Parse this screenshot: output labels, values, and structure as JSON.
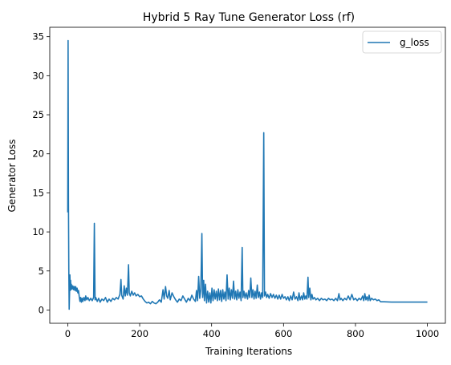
{
  "chart_data": {
    "type": "line",
    "title": "Hybrid 5 Ray Tune Generator Loss (rf)",
    "xlabel": "Training Iterations",
    "ylabel": "Generator Loss",
    "xlim": [
      -50,
      1050
    ],
    "ylim": [
      -1.7,
      36.2
    ],
    "xticks": [
      0,
      200,
      400,
      600,
      800,
      1000
    ],
    "yticks": [
      0,
      5,
      10,
      15,
      20,
      25,
      30,
      35
    ],
    "grid": false,
    "legend_position": "top-right",
    "series": [
      {
        "name": "g_loss",
        "color": "#1f77b4",
        "points": [
          [
            0,
            12.5
          ],
          [
            1,
            34.5
          ],
          [
            2,
            14.0
          ],
          [
            3,
            5.2
          ],
          [
            4,
            0.1
          ],
          [
            5,
            2.0
          ],
          [
            6,
            4.5
          ],
          [
            7,
            2.5
          ],
          [
            8,
            3.8
          ],
          [
            9,
            2.6
          ],
          [
            10,
            3.3
          ],
          [
            12,
            2.7
          ],
          [
            14,
            3.1
          ],
          [
            16,
            2.6
          ],
          [
            18,
            3.0
          ],
          [
            20,
            2.5
          ],
          [
            22,
            3.0
          ],
          [
            24,
            2.4
          ],
          [
            26,
            2.8
          ],
          [
            28,
            2.2
          ],
          [
            30,
            2.5
          ],
          [
            32,
            1.7
          ],
          [
            34,
            1.1
          ],
          [
            36,
            1.6
          ],
          [
            38,
            1.0
          ],
          [
            40,
            1.5
          ],
          [
            42,
            1.1
          ],
          [
            45,
            1.6
          ],
          [
            48,
            1.2
          ],
          [
            50,
            1.8
          ],
          [
            53,
            1.3
          ],
          [
            56,
            1.6
          ],
          [
            60,
            1.2
          ],
          [
            64,
            1.5
          ],
          [
            68,
            1.2
          ],
          [
            72,
            1.6
          ],
          [
            74,
            11.1
          ],
          [
            76,
            1.3
          ],
          [
            78,
            1.6
          ],
          [
            82,
            1.1
          ],
          [
            86,
            1.5
          ],
          [
            90,
            1.0
          ],
          [
            95,
            1.4
          ],
          [
            100,
            1.2
          ],
          [
            105,
            1.6
          ],
          [
            110,
            1.0
          ],
          [
            115,
            1.4
          ],
          [
            120,
            1.1
          ],
          [
            125,
            1.5
          ],
          [
            130,
            1.3
          ],
          [
            135,
            1.6
          ],
          [
            140,
            1.4
          ],
          [
            145,
            2.0
          ],
          [
            148,
            3.9
          ],
          [
            150,
            1.9
          ],
          [
            154,
            1.4
          ],
          [
            157,
            3.1
          ],
          [
            160,
            1.8
          ],
          [
            163,
            2.8
          ],
          [
            166,
            1.9
          ],
          [
            169,
            5.8
          ],
          [
            171,
            2.2
          ],
          [
            174,
            1.8
          ],
          [
            178,
            2.4
          ],
          [
            182,
            1.9
          ],
          [
            186,
            2.2
          ],
          [
            190,
            1.8
          ],
          [
            195,
            2.0
          ],
          [
            200,
            1.7
          ],
          [
            205,
            1.8
          ],
          [
            210,
            1.4
          ],
          [
            215,
            1.1
          ],
          [
            220,
            0.9
          ],
          [
            225,
            1.0
          ],
          [
            230,
            0.8
          ],
          [
            235,
            1.1
          ],
          [
            240,
            0.9
          ],
          [
            245,
            0.8
          ],
          [
            250,
            1.0
          ],
          [
            255,
            1.3
          ],
          [
            260,
            1.0
          ],
          [
            265,
            2.6
          ],
          [
            268,
            1.4
          ],
          [
            272,
            3.0
          ],
          [
            275,
            1.8
          ],
          [
            278,
            1.5
          ],
          [
            282,
            2.5
          ],
          [
            285,
            1.3
          ],
          [
            290,
            2.2
          ],
          [
            295,
            1.7
          ],
          [
            300,
            1.3
          ],
          [
            305,
            1.0
          ],
          [
            310,
            1.4
          ],
          [
            315,
            1.2
          ],
          [
            320,
            1.8
          ],
          [
            325,
            1.4
          ],
          [
            330,
            1.0
          ],
          [
            335,
            1.5
          ],
          [
            340,
            1.2
          ],
          [
            345,
            1.9
          ],
          [
            350,
            1.4
          ],
          [
            355,
            1.1
          ],
          [
            358,
            2.5
          ],
          [
            361,
            1.2
          ],
          [
            364,
            4.3
          ],
          [
            367,
            1.5
          ],
          [
            370,
            2.6
          ],
          [
            373,
            9.8
          ],
          [
            375,
            1.6
          ],
          [
            378,
            3.8
          ],
          [
            380,
            1.2
          ],
          [
            383,
            3.3
          ],
          [
            386,
            0.9
          ],
          [
            389,
            2.4
          ],
          [
            392,
            1.0
          ],
          [
            395,
            2.2
          ],
          [
            398,
            0.9
          ],
          [
            401,
            2.8
          ],
          [
            404,
            1.2
          ],
          [
            407,
            2.6
          ],
          [
            410,
            1.4
          ],
          [
            413,
            2.4
          ],
          [
            416,
            1.2
          ],
          [
            419,
            2.7
          ],
          [
            422,
            1.3
          ],
          [
            425,
            2.5
          ],
          [
            428,
            1.1
          ],
          [
            431,
            2.6
          ],
          [
            434,
            1.4
          ],
          [
            437,
            2.3
          ],
          [
            440,
            1.2
          ],
          [
            443,
            4.5
          ],
          [
            446,
            1.4
          ],
          [
            449,
            2.8
          ],
          [
            452,
            1.3
          ],
          [
            455,
            2.6
          ],
          [
            458,
            1.5
          ],
          [
            461,
            3.7
          ],
          [
            464,
            1.4
          ],
          [
            467,
            2.4
          ],
          [
            470,
            1.3
          ],
          [
            473,
            2.6
          ],
          [
            476,
            1.5
          ],
          [
            479,
            2.3
          ],
          [
            482,
            1.2
          ],
          [
            485,
            8.0
          ],
          [
            487,
            1.6
          ],
          [
            490,
            2.4
          ],
          [
            493,
            1.5
          ],
          [
            496,
            2.2
          ],
          [
            500,
            1.4
          ],
          [
            503,
            2.5
          ],
          [
            506,
            1.6
          ],
          [
            509,
            4.1
          ],
          [
            512,
            1.6
          ],
          [
            515,
            2.6
          ],
          [
            518,
            1.4
          ],
          [
            521,
            2.4
          ],
          [
            524,
            1.5
          ],
          [
            527,
            3.2
          ],
          [
            530,
            1.6
          ],
          [
            533,
            2.3
          ],
          [
            536,
            1.4
          ],
          [
            539,
            2.2
          ],
          [
            542,
            1.6
          ],
          [
            545,
            22.7
          ],
          [
            547,
            1.8
          ],
          [
            550,
            2.3
          ],
          [
            553,
            1.6
          ],
          [
            556,
            2.0
          ],
          [
            560,
            1.5
          ],
          [
            564,
            2.1
          ],
          [
            568,
            1.6
          ],
          [
            572,
            2.0
          ],
          [
            576,
            1.5
          ],
          [
            580,
            1.9
          ],
          [
            584,
            1.4
          ],
          [
            588,
            1.9
          ],
          [
            592,
            1.4
          ],
          [
            596,
            2.0
          ],
          [
            600,
            1.5
          ],
          [
            604,
            1.7
          ],
          [
            608,
            1.3
          ],
          [
            612,
            1.7
          ],
          [
            616,
            1.2
          ],
          [
            620,
            1.8
          ],
          [
            624,
            1.3
          ],
          [
            628,
            2.3
          ],
          [
            632,
            1.4
          ],
          [
            636,
            1.7
          ],
          [
            640,
            1.2
          ],
          [
            643,
            2.2
          ],
          [
            646,
            1.3
          ],
          [
            650,
            1.8
          ],
          [
            653,
            1.3
          ],
          [
            656,
            2.2
          ],
          [
            659,
            1.4
          ],
          [
            662,
            1.8
          ],
          [
            665,
            1.4
          ],
          [
            668,
            4.2
          ],
          [
            670,
            1.6
          ],
          [
            673,
            2.8
          ],
          [
            676,
            1.3
          ],
          [
            679,
            2.0
          ],
          [
            682,
            1.4
          ],
          [
            686,
            1.6
          ],
          [
            690,
            1.3
          ],
          [
            695,
            1.5
          ],
          [
            700,
            1.2
          ],
          [
            705,
            1.5
          ],
          [
            710,
            1.3
          ],
          [
            715,
            1.4
          ],
          [
            720,
            1.2
          ],
          [
            725,
            1.5
          ],
          [
            730,
            1.3
          ],
          [
            735,
            1.4
          ],
          [
            740,
            1.2
          ],
          [
            745,
            1.5
          ],
          [
            750,
            1.2
          ],
          [
            754,
            2.1
          ],
          [
            757,
            1.3
          ],
          [
            760,
            1.5
          ],
          [
            765,
            1.2
          ],
          [
            770,
            1.5
          ],
          [
            775,
            1.3
          ],
          [
            780,
            1.8
          ],
          [
            785,
            1.3
          ],
          [
            790,
            2.0
          ],
          [
            795,
            1.3
          ],
          [
            800,
            1.5
          ],
          [
            805,
            1.2
          ],
          [
            810,
            1.5
          ],
          [
            815,
            1.3
          ],
          [
            820,
            1.8
          ],
          [
            823,
            1.2
          ],
          [
            826,
            2.1
          ],
          [
            829,
            1.3
          ],
          [
            832,
            1.7
          ],
          [
            835,
            1.2
          ],
          [
            838,
            1.9
          ],
          [
            841,
            1.2
          ],
          [
            845,
            1.5
          ],
          [
            850,
            1.3
          ],
          [
            855,
            1.4
          ],
          [
            860,
            1.2
          ],
          [
            865,
            1.3
          ],
          [
            870,
            1.05
          ],
          [
            880,
            1.05
          ],
          [
            900,
            1.02
          ],
          [
            920,
            1.02
          ],
          [
            940,
            1.02
          ],
          [
            960,
            1.02
          ],
          [
            980,
            1.02
          ],
          [
            1000,
            1.02
          ]
        ]
      }
    ]
  }
}
